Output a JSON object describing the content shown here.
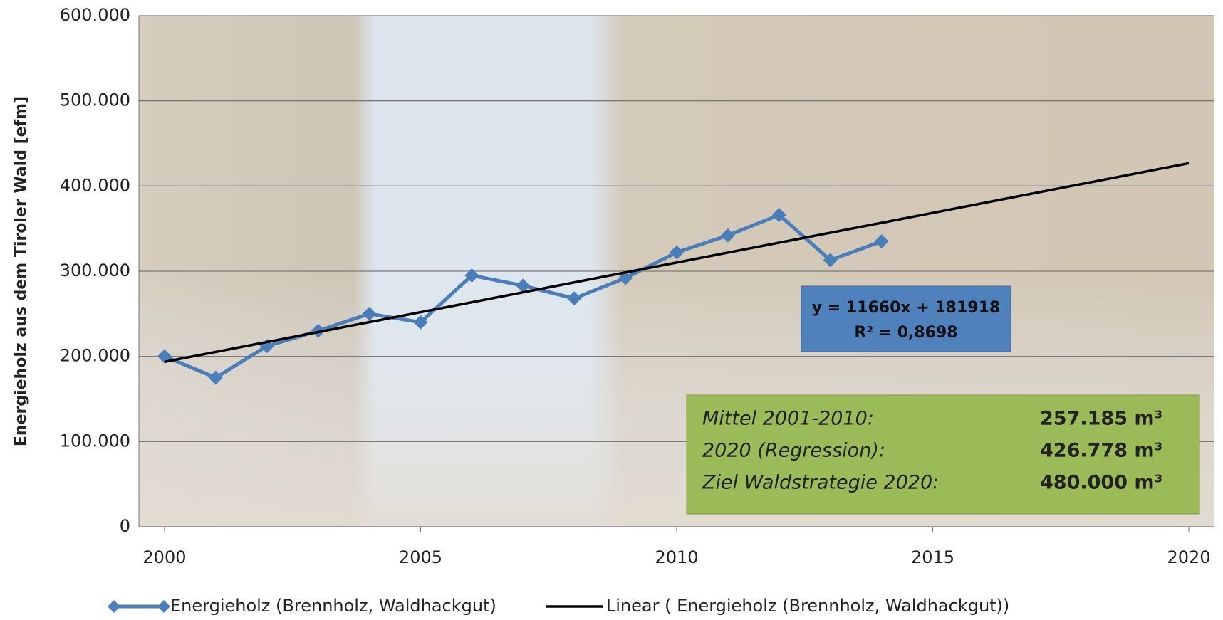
{
  "chart_data": {
    "type": "line",
    "y_label": "Energieholz aus dem Tiroler Wald [efm]",
    "xlim": [
      1999.5,
      2020.5
    ],
    "xticks": [
      2000,
      2005,
      2010,
      2015,
      2020
    ],
    "ylim": [
      0,
      600000
    ],
    "yticks": [
      0,
      {
        "value": 100000,
        "label": "100.000"
      },
      {
        "value": 200000,
        "label": "200.000"
      },
      {
        "value": 300000,
        "label": "300.000"
      },
      {
        "value": 400000,
        "label": "400.000"
      },
      {
        "value": 500000,
        "label": "500.000"
      },
      {
        "value": 600000,
        "label": "600.000"
      }
    ],
    "grid": true,
    "series": [
      {
        "name": "Energieholz (Brennholz, Waldhackgut)",
        "color": "#4a7ebb",
        "marker": "diamond",
        "x": [
          2000,
          2001,
          2002,
          2003,
          2004,
          2005,
          2006,
          2007,
          2008,
          2009,
          2010,
          2011,
          2012,
          2013,
          2014
        ],
        "values": [
          200000,
          175000,
          212000,
          230000,
          250000,
          240000,
          295000,
          283000,
          268000,
          292000,
          322000,
          342000,
          366000,
          313000,
          335000
        ]
      },
      {
        "name": "Linear ( Energieholz (Brennholz, Waldhackgut))",
        "color": "#000000",
        "marker": "none",
        "x": [
          2000,
          2020
        ],
        "values": [
          193578,
          426778
        ]
      }
    ],
    "legend": "bottom",
    "equation": [
      "y = 11660x + 181918",
      "R² = 0,8698"
    ],
    "summary": [
      {
        "label": "Mittel 2001-2010:",
        "value": "257.185 m³"
      },
      {
        "label": "2020 (Regression):",
        "value": "426.778 m³"
      },
      {
        "label": "Ziel Waldstrategie 2020:",
        "value": "480.000 m³"
      }
    ]
  }
}
